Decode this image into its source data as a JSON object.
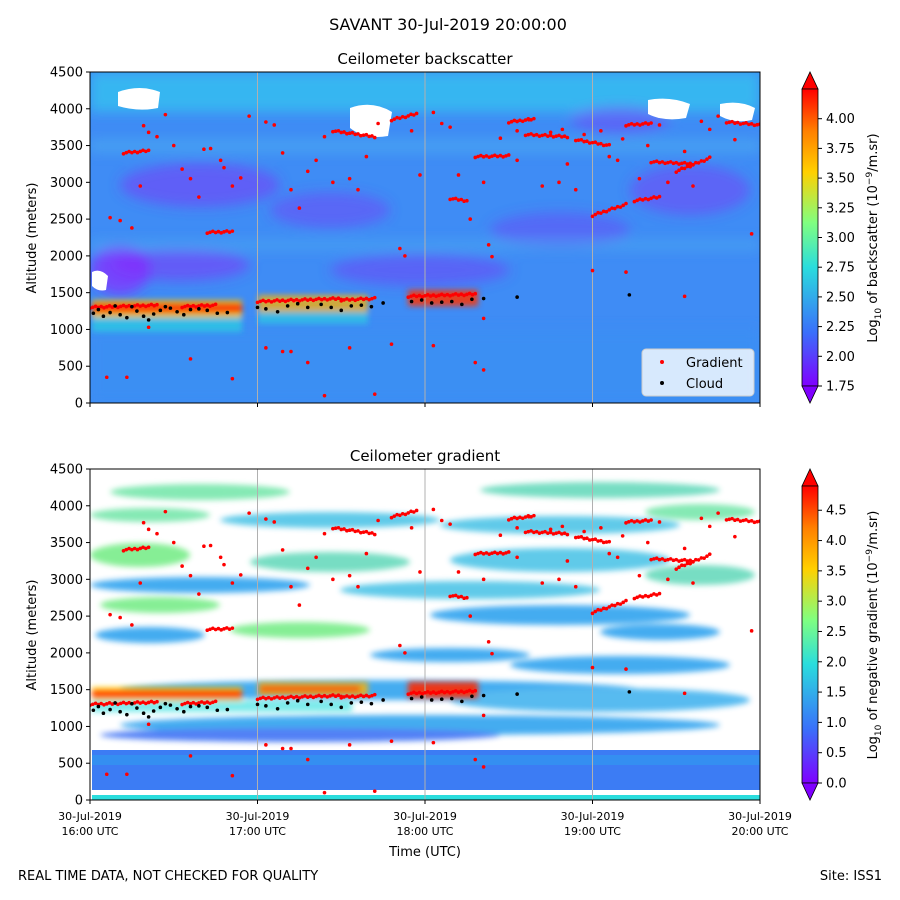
{
  "figure_title": "SAVANT 30-Jul-2019 20:00:00",
  "footer": {
    "left": "REAL TIME DATA, NOT CHECKED FOR QUALITY",
    "right": "Site: ISS1"
  },
  "colors": {
    "gradient_marker": "#ff0000",
    "cloud_marker": "#000000",
    "colormap": [
      "#7f00ff",
      "#3a6ffa",
      "#2adddd",
      "#80ff80",
      "#ffd000",
      "#ff7f00",
      "#ff0000"
    ]
  },
  "chart_data": [
    {
      "type": "heatmap",
      "title": "Ceilometer backscatter",
      "xlabel": "",
      "ylabel": "Altitude (meters)",
      "x_tick_labels": [],
      "y_ticks": [
        0,
        500,
        1000,
        1500,
        2000,
        2500,
        3000,
        3500,
        4000,
        4500
      ],
      "ylim": [
        0,
        4500
      ],
      "xlim_hours_utc": [
        16,
        20
      ],
      "colorbar": {
        "label": "Log10 of backscatter (10^-9/m.sr)",
        "label_parts": [
          "Log",
          "10",
          " of backscatter (10",
          "−9",
          "/m.sr)"
        ],
        "range": [
          1.75,
          4.25
        ],
        "ticks": [
          "1.75",
          "2.00",
          "2.25",
          "2.50",
          "2.75",
          "3.00",
          "3.25",
          "3.50",
          "3.75",
          "4.00"
        ]
      },
      "legend": {
        "placement": "lower-right",
        "entries": [
          "Gradient",
          "Cloud"
        ]
      },
      "grid": "vertical lines at hourly ticks"
    },
    {
      "type": "heatmap",
      "title": "Ceilometer gradient",
      "xlabel": "Time (UTC)",
      "ylabel": "Altitude (meters)",
      "x_tick_labels": [
        [
          "30-Jul-2019",
          "16:00 UTC"
        ],
        [
          "30-Jul-2019",
          "17:00 UTC"
        ],
        [
          "30-Jul-2019",
          "18:00 UTC"
        ],
        [
          "30-Jul-2019",
          "19:00 UTC"
        ],
        [
          "30-Jul-2019",
          "20:00 UTC"
        ]
      ],
      "y_ticks": [
        0,
        500,
        1000,
        1500,
        2000,
        2500,
        3000,
        3500,
        4000,
        4500
      ],
      "ylim": [
        0,
        4500
      ],
      "xlim_hours_utc": [
        16,
        20
      ],
      "colorbar": {
        "label": "Log10 of negative gradient (10^-9/m.sr)",
        "label_parts": [
          "Log",
          "10",
          " of negative gradient (10",
          "−9",
          "/m.sr)"
        ],
        "range": [
          0.0,
          4.9
        ],
        "ticks": [
          "0.0",
          "0.5",
          "1.0",
          "1.5",
          "2.0",
          "2.5",
          "3.0",
          "3.5",
          "4.0",
          "4.5"
        ]
      },
      "grid": "vertical lines at hourly ticks"
    }
  ],
  "gradient_tracks": [
    {
      "t": [
        16.0,
        16.4
      ],
      "alt": [
        1300,
        1330
      ]
    },
    {
      "t": [
        16.55,
        16.75
      ],
      "alt": [
        1310,
        1330
      ]
    },
    {
      "t": [
        17.0,
        17.5
      ],
      "alt": [
        1380,
        1420
      ]
    },
    {
      "t": [
        17.5,
        17.7
      ],
      "alt": [
        1400,
        1420
      ]
    },
    {
      "t": [
        17.9,
        18.3
      ],
      "alt": [
        1450,
        1480
      ]
    },
    {
      "t": [
        18.3,
        18.5
      ],
      "alt": [
        3350,
        3360
      ]
    },
    {
      "t": [
        18.5,
        18.65
      ],
      "alt": [
        3820,
        3860
      ]
    },
    {
      "t": [
        18.6,
        18.85
      ],
      "alt": [
        3650,
        3620
      ]
    },
    {
      "t": [
        18.9,
        19.1
      ],
      "alt": [
        3580,
        3500
      ]
    },
    {
      "t": [
        19.2,
        19.35
      ],
      "alt": [
        3780,
        3800
      ]
    },
    {
      "t": [
        19.35,
        19.6
      ],
      "alt": [
        3280,
        3250
      ]
    },
    {
      "t": [
        19.5,
        19.7
      ],
      "alt": [
        3150,
        3330
      ]
    },
    {
      "t": [
        19.8,
        20.0
      ],
      "alt": [
        3820,
        3780
      ]
    },
    {
      "t": [
        16.2,
        16.35
      ],
      "alt": [
        3400,
        3430
      ]
    },
    {
      "t": [
        16.7,
        16.85
      ],
      "alt": [
        2320,
        2330
      ]
    },
    {
      "t": [
        17.45,
        17.7
      ],
      "alt": [
        3700,
        3620
      ]
    },
    {
      "t": [
        17.8,
        17.95
      ],
      "alt": [
        3850,
        3930
      ]
    },
    {
      "t": [
        18.15,
        18.25
      ],
      "alt": [
        2780,
        2750
      ]
    },
    {
      "t": [
        19.0,
        19.2
      ],
      "alt": [
        2550,
        2700
      ]
    },
    {
      "t": [
        19.25,
        19.4
      ],
      "alt": [
        2750,
        2800
      ]
    }
  ],
  "gradient_scatter": [
    [
      16.12,
      2520
    ],
    [
      16.18,
      2480
    ],
    [
      16.25,
      2380
    ],
    [
      16.3,
      2950
    ],
    [
      16.32,
      3770
    ],
    [
      16.35,
      3680
    ],
    [
      16.4,
      3620
    ],
    [
      16.45,
      3920
    ],
    [
      16.5,
      3500
    ],
    [
      16.55,
      3180
    ],
    [
      16.6,
      3050
    ],
    [
      16.65,
      2800
    ],
    [
      16.68,
      3450
    ],
    [
      16.72,
      3460
    ],
    [
      16.78,
      3300
    ],
    [
      16.8,
      3200
    ],
    [
      16.85,
      2950
    ],
    [
      16.9,
      3060
    ],
    [
      16.95,
      3900
    ],
    [
      17.05,
      3820
    ],
    [
      17.1,
      3780
    ],
    [
      17.15,
      3400
    ],
    [
      17.2,
      2900
    ],
    [
      17.25,
      2650
    ],
    [
      17.3,
      3150
    ],
    [
      17.35,
      3300
    ],
    [
      17.4,
      3620
    ],
    [
      17.45,
      3000
    ],
    [
      17.55,
      3050
    ],
    [
      17.6,
      2900
    ],
    [
      17.65,
      3350
    ],
    [
      17.72,
      3800
    ],
    [
      17.85,
      2100
    ],
    [
      17.88,
      2000
    ],
    [
      17.92,
      3700
    ],
    [
      17.97,
      3100
    ],
    [
      18.05,
      3950
    ],
    [
      18.1,
      3800
    ],
    [
      18.15,
      3750
    ],
    [
      18.2,
      3100
    ],
    [
      18.27,
      2500
    ],
    [
      18.35,
      3000
    ],
    [
      18.38,
      2150
    ],
    [
      18.4,
      1990
    ],
    [
      18.45,
      3600
    ],
    [
      18.55,
      3700
    ],
    [
      18.62,
      3850
    ],
    [
      18.7,
      2950
    ],
    [
      18.8,
      3000
    ],
    [
      18.85,
      3250
    ],
    [
      18.9,
      2900
    ],
    [
      18.95,
      3650
    ],
    [
      19.05,
      3700
    ],
    [
      19.1,
      3350
    ],
    [
      19.15,
      3300
    ],
    [
      19.28,
      3050
    ],
    [
      19.33,
      3500
    ],
    [
      19.45,
      3000
    ],
    [
      19.55,
      3420
    ],
    [
      19.6,
      2950
    ],
    [
      19.65,
      3830
    ],
    [
      19.75,
      3900
    ],
    [
      19.85,
      3580
    ],
    [
      19.95,
      2300
    ],
    [
      16.1,
      350
    ],
    [
      16.22,
      350
    ],
    [
      16.35,
      1030
    ],
    [
      16.6,
      600
    ],
    [
      16.85,
      330
    ],
    [
      17.05,
      750
    ],
    [
      17.15,
      700
    ],
    [
      17.2,
      700
    ],
    [
      17.3,
      550
    ],
    [
      17.4,
      100
    ],
    [
      17.55,
      750
    ],
    [
      17.7,
      120
    ],
    [
      17.8,
      800
    ],
    [
      18.05,
      780
    ],
    [
      18.3,
      550
    ],
    [
      18.35,
      450
    ],
    [
      18.35,
      1150
    ],
    [
      19.0,
      1800
    ],
    [
      19.2,
      1780
    ],
    [
      19.55,
      1450
    ],
    [
      18.55,
      3300
    ],
    [
      18.75,
      3680
    ],
    [
      18.82,
      3720
    ],
    [
      19.18,
      3590
    ],
    [
      19.4,
      3780
    ],
    [
      19.7,
      3720
    ]
  ],
  "cloud_points": [
    [
      16.02,
      1220
    ],
    [
      16.05,
      1270
    ],
    [
      16.08,
      1180
    ],
    [
      16.12,
      1230
    ],
    [
      16.15,
      1320
    ],
    [
      16.18,
      1200
    ],
    [
      16.22,
      1160
    ],
    [
      16.25,
      1310
    ],
    [
      16.28,
      1250
    ],
    [
      16.32,
      1180
    ],
    [
      16.35,
      1130
    ],
    [
      16.38,
      1210
    ],
    [
      16.42,
      1260
    ],
    [
      16.45,
      1310
    ],
    [
      16.48,
      1290
    ],
    [
      16.52,
      1240
    ],
    [
      16.56,
      1200
    ],
    [
      16.6,
      1270
    ],
    [
      16.65,
      1280
    ],
    [
      16.7,
      1260
    ],
    [
      16.76,
      1220
    ],
    [
      16.82,
      1230
    ],
    [
      17.0,
      1300
    ],
    [
      17.05,
      1280
    ],
    [
      17.12,
      1240
    ],
    [
      17.18,
      1320
    ],
    [
      17.24,
      1350
    ],
    [
      17.3,
      1300
    ],
    [
      17.38,
      1340
    ],
    [
      17.44,
      1300
    ],
    [
      17.5,
      1260
    ],
    [
      17.56,
      1320
    ],
    [
      17.62,
      1330
    ],
    [
      17.68,
      1310
    ],
    [
      17.75,
      1360
    ],
    [
      17.92,
      1380
    ],
    [
      17.98,
      1400
    ],
    [
      18.04,
      1360
    ],
    [
      18.1,
      1370
    ],
    [
      18.16,
      1380
    ],
    [
      18.22,
      1340
    ],
    [
      18.28,
      1410
    ],
    [
      18.35,
      1420
    ],
    [
      18.55,
      1440
    ],
    [
      19.22,
      1470
    ]
  ]
}
